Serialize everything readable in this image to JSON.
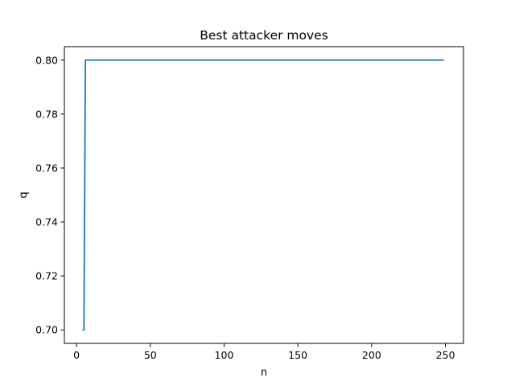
{
  "chart_data": {
    "type": "line",
    "title": "Best attacker moves",
    "xlabel": "n",
    "ylabel": "q",
    "xlim": [
      -8.25,
      262.25
    ],
    "ylim": [
      0.695,
      0.805
    ],
    "xticks": [
      0,
      50,
      100,
      150,
      200,
      250
    ],
    "yticks": [
      0.7,
      0.72,
      0.74,
      0.76,
      0.78,
      0.8
    ],
    "ytick_labels": [
      "0.70",
      "0.72",
      "0.74",
      "0.76",
      "0.78",
      "0.80"
    ],
    "grid": false,
    "series": [
      {
        "color": "#1f77b4",
        "points": [
          [
            4,
            0.7
          ],
          [
            5,
            0.7
          ],
          [
            5,
            0.7
          ],
          [
            6,
            0.8
          ],
          [
            249,
            0.8
          ]
        ]
      }
    ]
  }
}
